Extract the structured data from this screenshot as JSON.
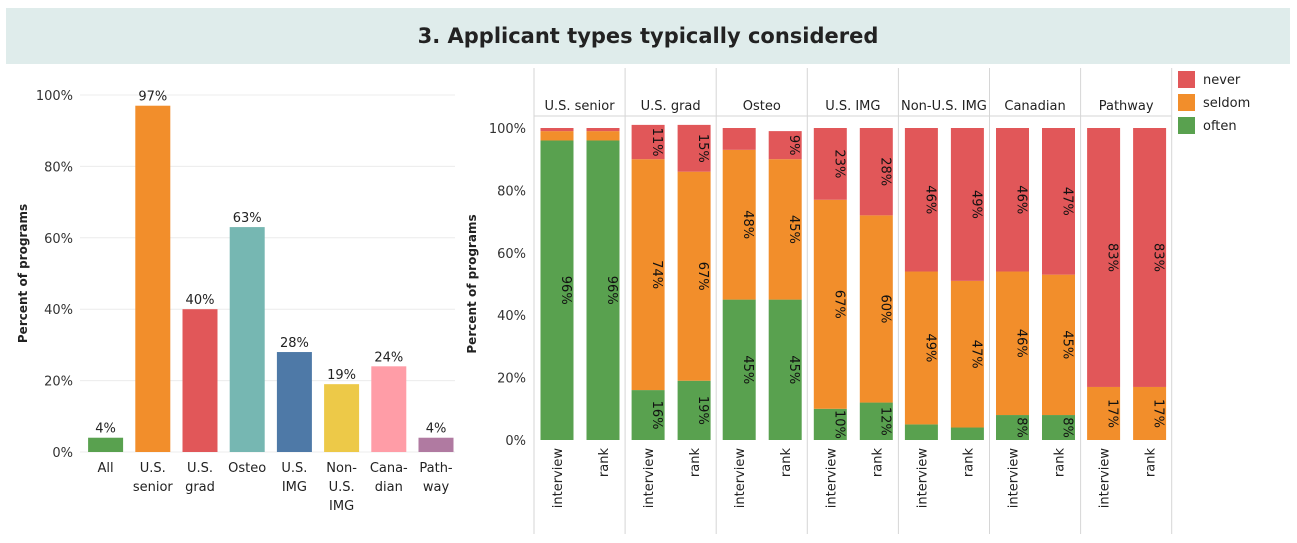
{
  "title": "3. Applicant types typically considered",
  "chart_data": [
    {
      "type": "bar",
      "categories": [
        "All",
        "U.S. senior",
        "U.S. grad",
        "Osteo",
        "U.S. IMG",
        "Non-U.S. IMG",
        "Cana-dian",
        "Path-way"
      ],
      "category_lines": [
        [
          "All"
        ],
        [
          "U.S.",
          "senior"
        ],
        [
          "U.S.",
          "grad"
        ],
        [
          "Osteo"
        ],
        [
          "U.S.",
          "IMG"
        ],
        [
          "Non-",
          "U.S.",
          "IMG"
        ],
        [
          "Cana-",
          "dian"
        ],
        [
          "Path-",
          "way"
        ]
      ],
      "values": [
        4,
        97,
        40,
        63,
        28,
        19,
        24,
        4
      ],
      "value_labels": [
        "4%",
        "97%",
        "40%",
        "63%",
        "28%",
        "19%",
        "24%",
        "4%"
      ],
      "colors": [
        "#59a14f",
        "#f28e2b",
        "#e15759",
        "#76b7b2",
        "#4e79a7",
        "#edc948",
        "#ff9da7",
        "#b07aa1"
      ],
      "ylabel": "Percent of programs",
      "ylim": [
        0,
        100
      ],
      "yticks": [
        "0%",
        "20%",
        "40%",
        "60%",
        "80%",
        "100%"
      ],
      "grid": true
    },
    {
      "type": "bar",
      "stacked": true,
      "groups": [
        "U.S. senior",
        "U.S. grad",
        "Osteo",
        "U.S. IMG",
        "Non-U.S. IMG",
        "Canadian",
        "Pathway"
      ],
      "bars": [
        "interview",
        "rank"
      ],
      "ylabel": "Percent of programs",
      "ylim": [
        0,
        100
      ],
      "yticks": [
        "0%",
        "20%",
        "40%",
        "60%",
        "80%",
        "100%"
      ],
      "legend": [
        {
          "name": "never",
          "color": "#e15759"
        },
        {
          "name": "seldom",
          "color": "#f28e2b"
        },
        {
          "name": "often",
          "color": "#59a14f"
        }
      ],
      "legend_position": "top-right",
      "series": [
        {
          "name": "often",
          "values": [
            [
              96,
              96
            ],
            [
              16,
              19
            ],
            [
              45,
              45
            ],
            [
              10,
              12
            ],
            [
              5,
              4
            ],
            [
              8,
              8
            ],
            [
              0,
              0
            ]
          ],
          "labels": [
            [
              "96%",
              "96%"
            ],
            [
              "16%",
              "19%"
            ],
            [
              "45%",
              "45%"
            ],
            [
              "10%",
              "12%"
            ],
            [
              "",
              ""
            ],
            [
              "8%",
              "8%"
            ],
            [
              "",
              ""
            ]
          ]
        },
        {
          "name": "seldom",
          "values": [
            [
              3,
              3
            ],
            [
              74,
              67
            ],
            [
              48,
              45
            ],
            [
              67,
              60
            ],
            [
              49,
              47
            ],
            [
              46,
              45
            ],
            [
              17,
              17
            ]
          ],
          "labels": [
            [
              "",
              ""
            ],
            [
              "74%",
              "67%"
            ],
            [
              "48%",
              "45%"
            ],
            [
              "67%",
              "60%"
            ],
            [
              "49%",
              "47%"
            ],
            [
              "46%",
              "45%"
            ],
            [
              "17%",
              "17%"
            ]
          ]
        },
        {
          "name": "never",
          "values": [
            [
              1,
              1
            ],
            [
              11,
              15
            ],
            [
              7,
              9
            ],
            [
              23,
              28
            ],
            [
              46,
              49
            ],
            [
              46,
              47
            ],
            [
              83,
              83
            ]
          ],
          "labels": [
            [
              "",
              ""
            ],
            [
              "11%",
              "15%"
            ],
            [
              "",
              "9%"
            ],
            [
              "23%",
              "28%"
            ],
            [
              "46%",
              "49%"
            ],
            [
              "46%",
              "47%"
            ],
            [
              "83%",
              "83%"
            ]
          ]
        }
      ]
    }
  ]
}
